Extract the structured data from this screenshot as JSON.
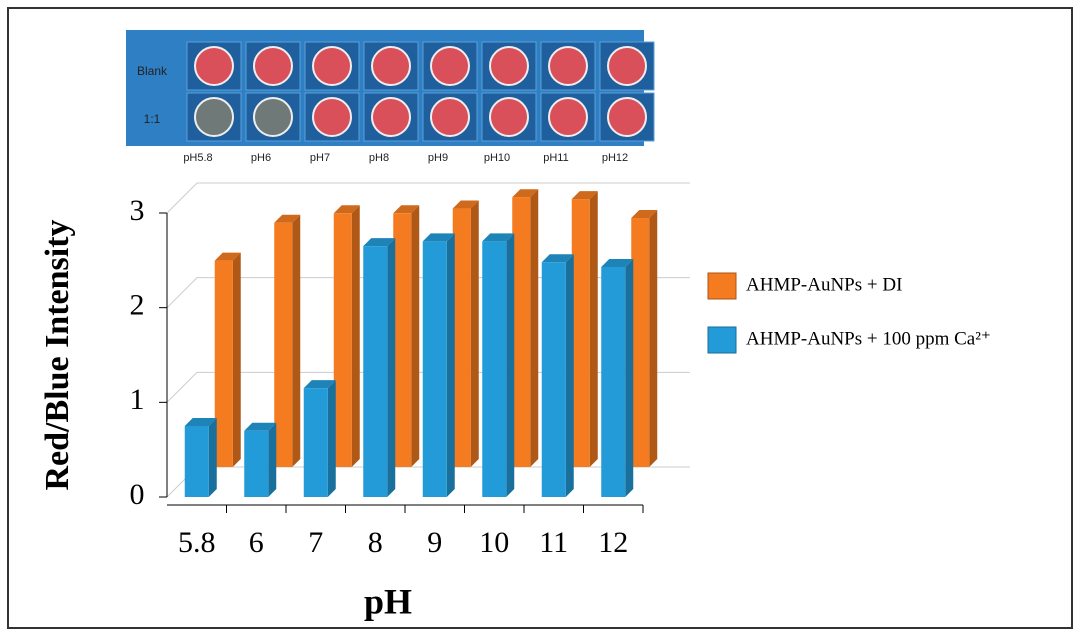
{
  "chart_data": {
    "type": "bar3d",
    "inset": {
      "row_labels": [
        "Blank",
        "1:1"
      ],
      "column_labels": [
        "pH5.8",
        "pH6",
        "pH7",
        "pH8",
        "pH9",
        "pH10",
        "pH11",
        "pH12"
      ]
    },
    "categories": [
      "5.8",
      "6",
      "7",
      "8",
      "9",
      "10",
      "11",
      "12"
    ],
    "series": [
      {
        "name": "AHMP-AuNPs + DI",
        "color": "#f47b20",
        "values": [
          2.18,
          2.58,
          2.68,
          2.68,
          2.73,
          2.85,
          2.83,
          2.63
        ]
      },
      {
        "name": "AHMP-AuNPs + 100 ppm Ca²⁺",
        "color": "#239bd8",
        "values": [
          0.75,
          0.7,
          1.15,
          2.65,
          2.7,
          2.7,
          2.48,
          2.43
        ]
      }
    ],
    "ylim": [
      0,
      3
    ],
    "yticks": [
      0,
      1,
      2,
      3
    ],
    "grid": true,
    "y_label": "Red/Blue Intensity",
    "x_label": "pH",
    "legend": "right"
  }
}
